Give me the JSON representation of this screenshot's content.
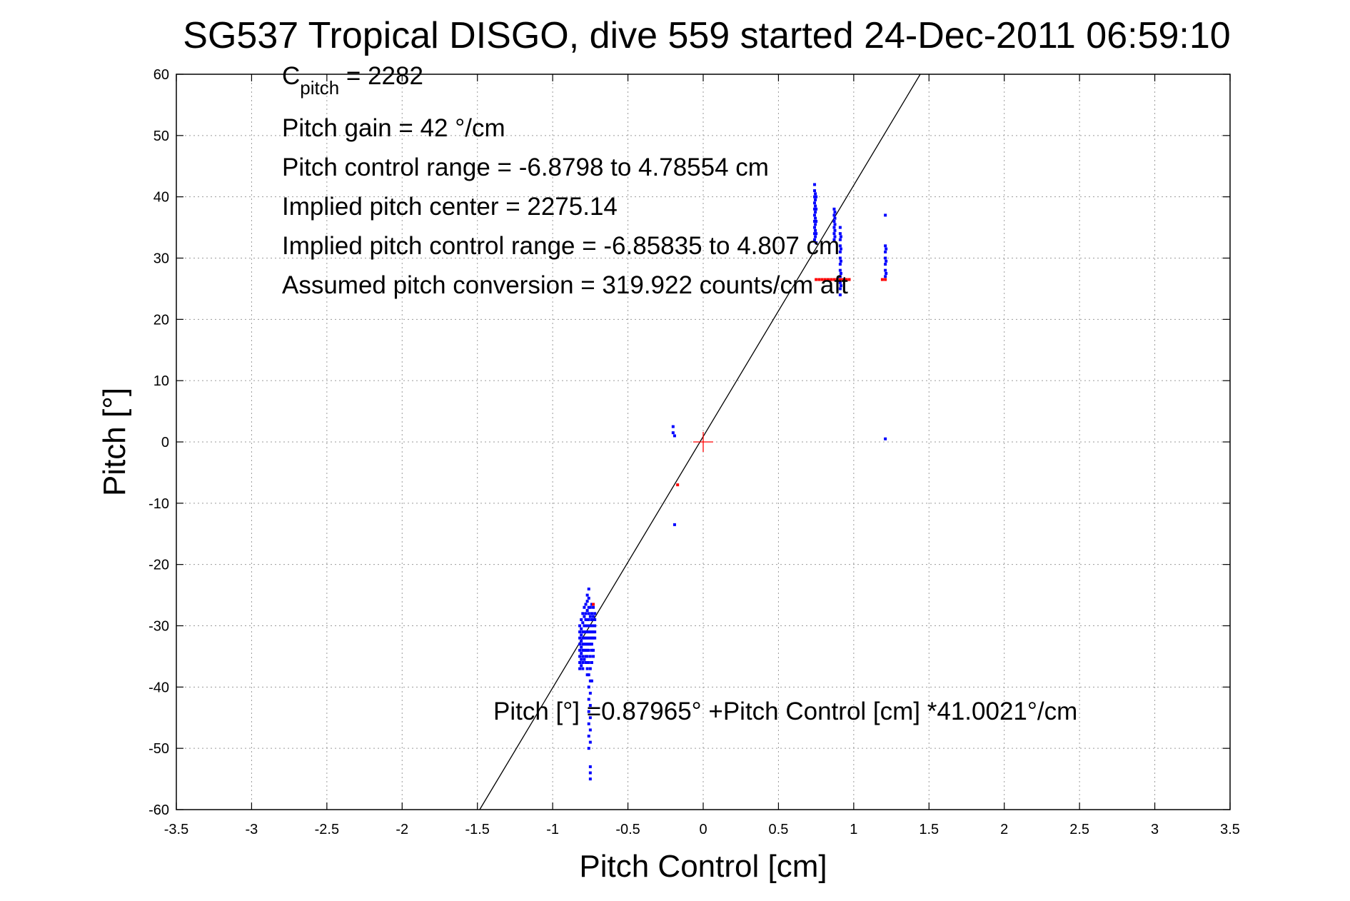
{
  "chart_data": {
    "type": "scatter",
    "title": "SG537 Tropical DISGO, dive 559 started 24-Dec-2011 06:59:10",
    "xlabel": "Pitch Control [cm]",
    "ylabel": "Pitch [°]",
    "xlim": [
      -3.5,
      3.5
    ],
    "ylim": [
      -60,
      60
    ],
    "xticks": [
      -3.5,
      -3,
      -2.5,
      -2,
      -1.5,
      -1,
      -0.5,
      0,
      0.5,
      1,
      1.5,
      2,
      2.5,
      3,
      3.5
    ],
    "yticks": [
      -60,
      -50,
      -40,
      -30,
      -20,
      -10,
      0,
      10,
      20,
      30,
      40,
      50,
      60
    ],
    "xtick_labels": [
      "-3.5",
      "-3",
      "-2.5",
      "-2",
      "-1.5",
      "-1",
      "-0.5",
      "0",
      "0.5",
      "1",
      "1.5",
      "2",
      "2.5",
      "3",
      "3.5"
    ],
    "ytick_labels": [
      "-60",
      "-50",
      "-40",
      "-30",
      "-20",
      "-10",
      "0",
      "10",
      "20",
      "30",
      "40",
      "50",
      "60"
    ],
    "grid": true,
    "fit_line": {
      "intercept": 0.87965,
      "slope": 41.0021,
      "color": "#000000"
    },
    "center_marker": {
      "x": 0,
      "y": 0,
      "color": "#ff0000"
    },
    "annotations": {
      "c_pitch_main": "C",
      "c_pitch_sub": "pitch",
      "c_pitch_value": " = 2282",
      "pitch_gain": "Pitch gain = 42 °/cm",
      "pitch_control_range": "Pitch control range = -6.8798 to 4.78554 cm",
      "implied_pitch_center": "Implied pitch center = 2275.14",
      "implied_pitch_control_range": "Implied pitch control range = -6.85835 to 4.807 cm",
      "assumed_pitch_conversion": "Assumed pitch conversion = 319.922 counts/cm aft",
      "fit_equation": "Pitch [°] =0.87965° +Pitch Control [cm] *41.0021°/cm"
    },
    "series": [
      {
        "color": "#0000ff",
        "points": [
          [
            -0.82,
            -30
          ],
          [
            -0.82,
            -31
          ],
          [
            -0.82,
            -32
          ],
          [
            -0.82,
            -33
          ],
          [
            -0.82,
            -34
          ],
          [
            -0.82,
            -35
          ],
          [
            -0.82,
            -36
          ],
          [
            -0.82,
            -37
          ],
          [
            -0.81,
            -29
          ],
          [
            -0.81,
            -30.5
          ],
          [
            -0.81,
            -31.5
          ],
          [
            -0.81,
            -32.5
          ],
          [
            -0.81,
            -33.5
          ],
          [
            -0.81,
            -34.5
          ],
          [
            -0.81,
            -35.5
          ],
          [
            -0.81,
            -36.5
          ],
          [
            -0.8,
            -28
          ],
          [
            -0.8,
            -29.5
          ],
          [
            -0.8,
            -31
          ],
          [
            -0.8,
            -32
          ],
          [
            -0.8,
            -33
          ],
          [
            -0.8,
            -34
          ],
          [
            -0.8,
            -35
          ],
          [
            -0.8,
            -36
          ],
          [
            -0.8,
            -37
          ],
          [
            -0.79,
            -27
          ],
          [
            -0.79,
            -28.5
          ],
          [
            -0.79,
            -30
          ],
          [
            -0.79,
            -31
          ],
          [
            -0.79,
            -32
          ],
          [
            -0.79,
            -33
          ],
          [
            -0.79,
            -34
          ],
          [
            -0.79,
            -35.5
          ],
          [
            -0.78,
            -26.5
          ],
          [
            -0.78,
            -28
          ],
          [
            -0.78,
            -29
          ],
          [
            -0.78,
            -30
          ],
          [
            -0.78,
            -31
          ],
          [
            -0.78,
            -32
          ],
          [
            -0.78,
            -33
          ],
          [
            -0.78,
            -34
          ],
          [
            -0.78,
            -35
          ],
          [
            -0.78,
            -36
          ],
          [
            -0.77,
            -25
          ],
          [
            -0.77,
            -26
          ],
          [
            -0.77,
            -27.5
          ],
          [
            -0.77,
            -29
          ],
          [
            -0.77,
            -30
          ],
          [
            -0.77,
            -31
          ],
          [
            -0.77,
            -32
          ],
          [
            -0.77,
            -33
          ],
          [
            -0.77,
            -34
          ],
          [
            -0.77,
            -35
          ],
          [
            -0.77,
            -36
          ],
          [
            -0.77,
            -37
          ],
          [
            -0.77,
            -38
          ],
          [
            -0.76,
            -24
          ],
          [
            -0.76,
            -25.5
          ],
          [
            -0.76,
            -27
          ],
          [
            -0.76,
            -28
          ],
          [
            -0.76,
            -29
          ],
          [
            -0.76,
            -30
          ],
          [
            -0.76,
            -31
          ],
          [
            -0.76,
            -32
          ],
          [
            -0.76,
            -33
          ],
          [
            -0.76,
            -34
          ],
          [
            -0.76,
            -36
          ],
          [
            -0.76,
            -38
          ],
          [
            -0.76,
            -40
          ],
          [
            -0.76,
            -42
          ],
          [
            -0.76,
            -44
          ],
          [
            -0.76,
            -46
          ],
          [
            -0.76,
            -48
          ],
          [
            -0.76,
            -50
          ],
          [
            -0.75,
            -27
          ],
          [
            -0.75,
            -28.5
          ],
          [
            -0.75,
            -30
          ],
          [
            -0.75,
            -31
          ],
          [
            -0.75,
            -32
          ],
          [
            -0.75,
            -33
          ],
          [
            -0.75,
            -35
          ],
          [
            -0.75,
            -37
          ],
          [
            -0.75,
            -39
          ],
          [
            -0.75,
            -41
          ],
          [
            -0.75,
            -43
          ],
          [
            -0.75,
            -45
          ],
          [
            -0.75,
            -47
          ],
          [
            -0.75,
            -49
          ],
          [
            -0.75,
            -53
          ],
          [
            -0.75,
            -54
          ],
          [
            -0.75,
            -55
          ],
          [
            -0.74,
            -26.5
          ],
          [
            -0.74,
            -28
          ],
          [
            -0.74,
            -29
          ],
          [
            -0.74,
            -30
          ],
          [
            -0.74,
            -31
          ],
          [
            -0.74,
            -32
          ],
          [
            -0.74,
            -33
          ],
          [
            -0.74,
            -34
          ],
          [
            -0.74,
            -36
          ],
          [
            -0.74,
            -39
          ],
          [
            -0.73,
            -27
          ],
          [
            -0.73,
            -28.5
          ],
          [
            -0.73,
            -30
          ],
          [
            -0.73,
            -31
          ],
          [
            -0.73,
            -32
          ],
          [
            -0.73,
            -34
          ],
          [
            -0.73,
            -35
          ],
          [
            -0.72,
            -28
          ],
          [
            -0.72,
            -29
          ],
          [
            -0.72,
            -30
          ],
          [
            -0.72,
            -31
          ],
          [
            -0.72,
            -32
          ],
          [
            -0.2,
            2.5
          ],
          [
            -0.2,
            1.5
          ],
          [
            -0.19,
            1
          ],
          [
            -0.19,
            -13.5
          ],
          [
            0.74,
            42
          ],
          [
            0.74,
            41
          ],
          [
            0.74,
            40
          ],
          [
            0.74,
            39
          ],
          [
            0.74,
            38
          ],
          [
            0.74,
            37
          ],
          [
            0.74,
            36
          ],
          [
            0.74,
            35
          ],
          [
            0.74,
            34
          ],
          [
            0.74,
            33
          ],
          [
            0.745,
            40.5
          ],
          [
            0.745,
            39.5
          ],
          [
            0.745,
            38.5
          ],
          [
            0.745,
            37.5
          ],
          [
            0.745,
            36.5
          ],
          [
            0.745,
            35.5
          ],
          [
            0.745,
            34.5
          ],
          [
            0.745,
            33.5
          ],
          [
            0.75,
            40
          ],
          [
            0.75,
            38
          ],
          [
            0.75,
            36
          ],
          [
            0.75,
            34
          ],
          [
            0.75,
            32.5
          ],
          [
            0.87,
            38
          ],
          [
            0.87,
            37
          ],
          [
            0.87,
            36
          ],
          [
            0.87,
            35
          ],
          [
            0.87,
            34
          ],
          [
            0.87,
            33
          ],
          [
            0.875,
            37.5
          ],
          [
            0.875,
            36.5
          ],
          [
            0.875,
            35.5
          ],
          [
            0.875,
            34.5
          ],
          [
            0.875,
            33.5
          ],
          [
            0.91,
            35
          ],
          [
            0.91,
            34
          ],
          [
            0.91,
            33
          ],
          [
            0.91,
            32
          ],
          [
            0.91,
            31
          ],
          [
            0.91,
            30
          ],
          [
            0.91,
            29
          ],
          [
            0.91,
            28
          ],
          [
            0.91,
            27
          ],
          [
            0.91,
            26
          ],
          [
            0.91,
            25
          ],
          [
            0.91,
            24
          ],
          [
            0.915,
            33.5
          ],
          [
            0.915,
            31.5
          ],
          [
            0.915,
            29.5
          ],
          [
            0.915,
            27.5
          ],
          [
            0.915,
            25.5
          ],
          [
            1.21,
            37
          ],
          [
            1.21,
            32
          ],
          [
            1.21,
            31
          ],
          [
            1.21,
            30
          ],
          [
            1.21,
            29
          ],
          [
            1.21,
            28
          ],
          [
            1.21,
            27
          ],
          [
            1.215,
            31.5
          ],
          [
            1.215,
            29.5
          ],
          [
            1.215,
            27.5
          ],
          [
            1.21,
            0.5
          ]
        ]
      },
      {
        "color": "#ff0000",
        "points": [
          [
            0.75,
            26.5
          ],
          [
            0.77,
            26.5
          ],
          [
            0.79,
            26.5
          ],
          [
            0.81,
            26.5
          ],
          [
            0.83,
            26.5
          ],
          [
            0.85,
            26.5
          ],
          [
            0.87,
            26.5
          ],
          [
            0.89,
            26.5
          ],
          [
            0.91,
            26.5
          ],
          [
            0.93,
            26.5
          ],
          [
            0.95,
            26.5
          ],
          [
            0.97,
            26.5
          ],
          [
            1.19,
            26.5
          ],
          [
            1.21,
            26.5
          ],
          [
            -0.17,
            -7
          ],
          [
            -0.73,
            -26.5
          ]
        ]
      }
    ]
  }
}
